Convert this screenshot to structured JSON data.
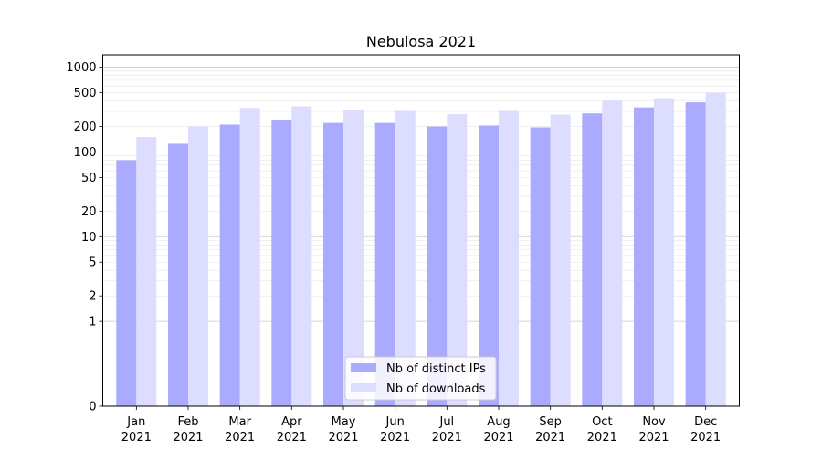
{
  "chart_data": {
    "type": "bar",
    "title": "Nebulosa 2021",
    "xlabel": "",
    "ylabel": "",
    "categories": [
      {
        "month": "Jan",
        "year": "2021"
      },
      {
        "month": "Feb",
        "year": "2021"
      },
      {
        "month": "Mar",
        "year": "2021"
      },
      {
        "month": "Apr",
        "year": "2021"
      },
      {
        "month": "May",
        "year": "2021"
      },
      {
        "month": "Jun",
        "year": "2021"
      },
      {
        "month": "Jul",
        "year": "2021"
      },
      {
        "month": "Aug",
        "year": "2021"
      },
      {
        "month": "Sep",
        "year": "2021"
      },
      {
        "month": "Oct",
        "year": "2021"
      },
      {
        "month": "Nov",
        "year": "2021"
      },
      {
        "month": "Dec",
        "year": "2021"
      }
    ],
    "series": [
      {
        "name": "Nb of distinct IPs",
        "color": "#aaaaff",
        "values": [
          80,
          125,
          210,
          240,
          220,
          220,
          200,
          205,
          195,
          285,
          335,
          385
        ]
      },
      {
        "name": "Nb of downloads",
        "color": "#ddddff",
        "values": [
          150,
          200,
          330,
          345,
          315,
          305,
          280,
          305,
          275,
          405,
          430,
          500
        ]
      }
    ],
    "y_scale": "symlog",
    "ylim": [
      0,
      1400
    ],
    "y_ticks": [
      0,
      1,
      2,
      5,
      10,
      20,
      50,
      100,
      200,
      500,
      1000
    ],
    "grid": true,
    "legend_position": "bottom-center"
  }
}
